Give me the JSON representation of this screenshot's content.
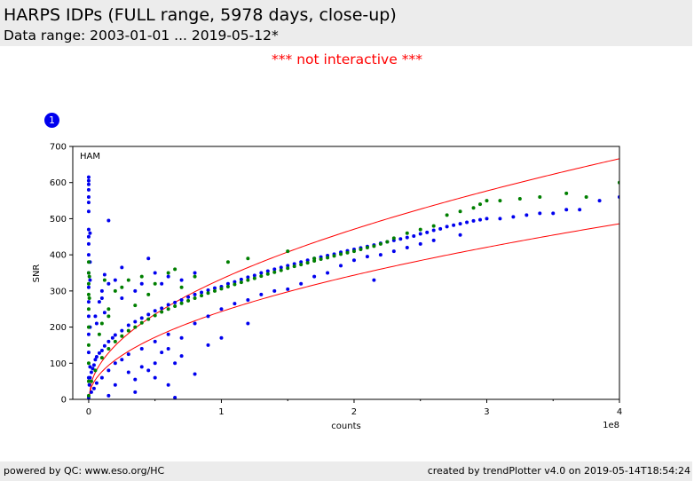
{
  "header": {
    "title": "HARPS IDPs (FULL range, 5978 days, close-up)",
    "subtitle": "Data range: 2003-01-01 ... 2019-05-12*"
  },
  "notice": "*** not interactive ***",
  "badge": "1",
  "footer": {
    "left": "powered by QC: www.eso.org/HC",
    "right": "created by trendPlotter v4.0 on 2019-05-14T18:54:24"
  },
  "colors": {
    "series_blue": "#0000ee",
    "series_green": "#007f00",
    "limits": "#ff0000"
  },
  "chart_data": {
    "type": "scatter",
    "title": "",
    "panel_label": "HAM",
    "xlabel": "counts",
    "ylabel": "SNR",
    "x_multiplier_label": "1e8",
    "xlim": [
      -0.12,
      4.0
    ],
    "ylim": [
      0,
      700
    ],
    "x_ticks": [
      0,
      1,
      2,
      3,
      4
    ],
    "x_tick_labels": [
      "0",
      "1",
      "2",
      "3",
      "4"
    ],
    "y_ticks": [
      0,
      100,
      200,
      300,
      400,
      500,
      600,
      700
    ],
    "y_tick_labels": [
      "0",
      "100",
      "200",
      "300",
      "400",
      "500",
      "600",
      "700"
    ],
    "grid": false,
    "series": [
      {
        "color": "#0000ee",
        "points": [
          [
            0.0,
            5
          ],
          [
            0.0,
            60
          ],
          [
            0.0,
            130
          ],
          [
            0.0,
            180
          ],
          [
            0.0,
            230
          ],
          [
            0.0,
            270
          ],
          [
            0.0,
            310
          ],
          [
            0.0,
            350
          ],
          [
            0.0,
            400
          ],
          [
            0.0,
            430
          ],
          [
            0.0,
            450
          ],
          [
            0.0,
            470
          ],
          [
            0.0,
            520
          ],
          [
            0.0,
            545
          ],
          [
            0.0,
            560
          ],
          [
            0.0,
            580
          ],
          [
            0.0,
            595
          ],
          [
            0.0,
            605
          ],
          [
            0.0,
            615
          ],
          [
            0.01,
            90
          ],
          [
            0.01,
            200
          ],
          [
            0.01,
            330
          ],
          [
            0.01,
            380
          ],
          [
            0.01,
            460
          ],
          [
            0.005,
            40
          ],
          [
            0.01,
            60
          ],
          [
            0.02,
            75
          ],
          [
            0.03,
            85
          ],
          [
            0.04,
            95
          ],
          [
            0.05,
            110
          ],
          [
            0.06,
            118
          ],
          [
            0.08,
            128
          ],
          [
            0.1,
            135
          ],
          [
            0.12,
            148
          ],
          [
            0.15,
            160
          ],
          [
            0.18,
            170
          ],
          [
            0.2,
            178
          ],
          [
            0.25,
            190
          ],
          [
            0.3,
            205
          ],
          [
            0.35,
            215
          ],
          [
            0.4,
            225
          ],
          [
            0.45,
            235
          ],
          [
            0.5,
            245
          ],
          [
            0.55,
            252
          ],
          [
            0.6,
            262
          ],
          [
            0.65,
            268
          ],
          [
            0.7,
            275
          ],
          [
            0.75,
            283
          ],
          [
            0.8,
            290
          ],
          [
            0.85,
            296
          ],
          [
            0.9,
            302
          ],
          [
            0.95,
            308
          ],
          [
            1.0,
            312
          ],
          [
            1.05,
            320
          ],
          [
            1.1,
            325
          ],
          [
            1.15,
            332
          ],
          [
            1.2,
            338
          ],
          [
            1.25,
            343
          ],
          [
            1.3,
            350
          ],
          [
            1.35,
            355
          ],
          [
            1.4,
            360
          ],
          [
            1.45,
            365
          ],
          [
            1.5,
            370
          ],
          [
            1.55,
            375
          ],
          [
            1.6,
            380
          ],
          [
            1.65,
            385
          ],
          [
            1.7,
            390
          ],
          [
            1.75,
            394
          ],
          [
            1.8,
            398
          ],
          [
            1.85,
            402
          ],
          [
            1.9,
            407
          ],
          [
            1.95,
            411
          ],
          [
            2.0,
            415
          ],
          [
            2.05,
            419
          ],
          [
            2.1,
            423
          ],
          [
            2.15,
            427
          ],
          [
            2.2,
            432
          ],
          [
            2.25,
            436
          ],
          [
            2.3,
            440
          ],
          [
            2.35,
            444
          ],
          [
            2.4,
            448
          ],
          [
            2.45,
            452
          ],
          [
            2.5,
            458
          ],
          [
            2.55,
            462
          ],
          [
            2.6,
            468
          ],
          [
            2.65,
            472
          ],
          [
            2.7,
            478
          ],
          [
            2.75,
            482
          ],
          [
            2.8,
            486
          ],
          [
            2.85,
            490
          ],
          [
            2.9,
            494
          ],
          [
            2.95,
            497
          ],
          [
            3.0,
            500
          ],
          [
            3.1,
            500
          ],
          [
            3.2,
            505
          ],
          [
            3.3,
            510
          ],
          [
            3.4,
            515
          ],
          [
            3.5,
            515
          ],
          [
            3.6,
            525
          ],
          [
            3.7,
            525
          ],
          [
            3.85,
            550
          ],
          [
            4.0,
            560
          ],
          [
            0.05,
            230
          ],
          [
            0.08,
            270
          ],
          [
            0.1,
            300
          ],
          [
            0.15,
            320
          ],
          [
            0.2,
            330
          ],
          [
            0.1,
            280
          ],
          [
            0.06,
            210
          ],
          [
            0.12,
            240
          ],
          [
            0.25,
            280
          ],
          [
            0.35,
            300
          ],
          [
            0.4,
            320
          ],
          [
            0.5,
            350
          ],
          [
            0.6,
            340
          ],
          [
            0.45,
            390
          ],
          [
            0.55,
            320
          ],
          [
            0.7,
            330
          ],
          [
            0.8,
            350
          ],
          [
            0.15,
            495
          ],
          [
            0.12,
            345
          ],
          [
            0.25,
            365
          ],
          [
            0.02,
            20
          ],
          [
            0.04,
            30
          ],
          [
            0.06,
            45
          ],
          [
            0.1,
            60
          ],
          [
            0.15,
            80
          ],
          [
            0.2,
            100
          ],
          [
            0.25,
            110
          ],
          [
            0.3,
            125
          ],
          [
            0.4,
            140
          ],
          [
            0.5,
            160
          ],
          [
            0.6,
            180
          ],
          [
            0.65,
            100
          ],
          [
            0.55,
            130
          ],
          [
            0.4,
            90
          ],
          [
            0.3,
            75
          ],
          [
            0.15,
            10
          ],
          [
            0.2,
            40
          ],
          [
            0.35,
            55
          ],
          [
            0.45,
            80
          ],
          [
            0.5,
            100
          ],
          [
            0.6,
            140
          ],
          [
            0.7,
            170
          ],
          [
            0.8,
            210
          ],
          [
            0.9,
            230
          ],
          [
            1.0,
            250
          ],
          [
            1.1,
            265
          ],
          [
            1.2,
            275
          ],
          [
            1.3,
            290
          ],
          [
            1.4,
            300
          ],
          [
            1.5,
            305
          ],
          [
            1.6,
            320
          ],
          [
            1.7,
            340
          ],
          [
            1.8,
            350
          ],
          [
            1.9,
            370
          ],
          [
            2.0,
            385
          ],
          [
            2.1,
            395
          ],
          [
            2.2,
            400
          ],
          [
            2.3,
            410
          ],
          [
            2.4,
            420
          ],
          [
            2.5,
            430
          ],
          [
            2.6,
            440
          ],
          [
            2.8,
            455
          ],
          [
            0.8,
            70
          ],
          [
            0.6,
            40
          ],
          [
            0.7,
            120
          ],
          [
            1.0,
            170
          ],
          [
            2.15,
            330
          ],
          [
            1.2,
            210
          ],
          [
            0.9,
            150
          ],
          [
            0.35,
            20
          ],
          [
            0.65,
            5
          ],
          [
            0.5,
            60
          ]
        ]
      },
      {
        "color": "#007f00",
        "points": [
          [
            0.0,
            10
          ],
          [
            0.0,
            50
          ],
          [
            0.0,
            100
          ],
          [
            0.0,
            150
          ],
          [
            0.0,
            200
          ],
          [
            0.0,
            250
          ],
          [
            0.0,
            290
          ],
          [
            0.0,
            320
          ],
          [
            0.0,
            350
          ],
          [
            0.0,
            380
          ],
          [
            0.005,
            280
          ],
          [
            0.005,
            340
          ],
          [
            0.02,
            50
          ],
          [
            0.05,
            80
          ],
          [
            0.1,
            115
          ],
          [
            0.15,
            140
          ],
          [
            0.2,
            160
          ],
          [
            0.25,
            175
          ],
          [
            0.3,
            190
          ],
          [
            0.35,
            200
          ],
          [
            0.4,
            212
          ],
          [
            0.45,
            222
          ],
          [
            0.5,
            232
          ],
          [
            0.55,
            242
          ],
          [
            0.6,
            250
          ],
          [
            0.65,
            258
          ],
          [
            0.7,
            266
          ],
          [
            0.75,
            273
          ],
          [
            0.8,
            280
          ],
          [
            0.85,
            287
          ],
          [
            0.9,
            294
          ],
          [
            0.95,
            300
          ],
          [
            1.0,
            306
          ],
          [
            1.05,
            312
          ],
          [
            1.1,
            318
          ],
          [
            1.15,
            324
          ],
          [
            1.2,
            330
          ],
          [
            1.25,
            335
          ],
          [
            1.3,
            341
          ],
          [
            1.35,
            347
          ],
          [
            1.4,
            352
          ],
          [
            1.45,
            357
          ],
          [
            1.5,
            363
          ],
          [
            1.55,
            368
          ],
          [
            1.6,
            373
          ],
          [
            1.65,
            378
          ],
          [
            1.7,
            383
          ],
          [
            1.75,
            388
          ],
          [
            1.8,
            392
          ],
          [
            1.85,
            397
          ],
          [
            1.9,
            402
          ],
          [
            1.95,
            406
          ],
          [
            2.0,
            410
          ],
          [
            2.05,
            415
          ],
          [
            2.1,
            420
          ],
          [
            2.15,
            424
          ],
          [
            2.2,
            430
          ],
          [
            2.25,
            436
          ],
          [
            2.3,
            446
          ],
          [
            2.4,
            460
          ],
          [
            2.5,
            470
          ],
          [
            2.6,
            480
          ],
          [
            2.7,
            510
          ],
          [
            2.8,
            520
          ],
          [
            2.9,
            530
          ],
          [
            2.95,
            540
          ],
          [
            3.0,
            550
          ],
          [
            3.1,
            550
          ],
          [
            3.25,
            555
          ],
          [
            3.4,
            560
          ],
          [
            3.6,
            570
          ],
          [
            3.75,
            560
          ],
          [
            4.0,
            600
          ],
          [
            0.1,
            210
          ],
          [
            0.15,
            250
          ],
          [
            0.2,
            300
          ],
          [
            0.25,
            310
          ],
          [
            0.3,
            330
          ],
          [
            0.4,
            340
          ],
          [
            0.5,
            320
          ],
          [
            0.6,
            350
          ],
          [
            0.65,
            360
          ],
          [
            0.7,
            310
          ],
          [
            0.8,
            340
          ],
          [
            1.05,
            380
          ],
          [
            1.5,
            410
          ],
          [
            1.7,
            390
          ],
          [
            1.2,
            390
          ],
          [
            0.12,
            330
          ],
          [
            0.08,
            180
          ],
          [
            0.15,
            230
          ],
          [
            0.35,
            260
          ],
          [
            0.45,
            290
          ]
        ]
      }
    ],
    "limit_lines": [
      {
        "name": "upper",
        "color": "#ff0000",
        "formula": "SNR = 333*sqrt(counts/1e8)",
        "coef": 333
      },
      {
        "name": "lower",
        "color": "#ff0000",
        "formula": "SNR = 243*sqrt(counts/1e8)",
        "coef": 243
      }
    ]
  }
}
